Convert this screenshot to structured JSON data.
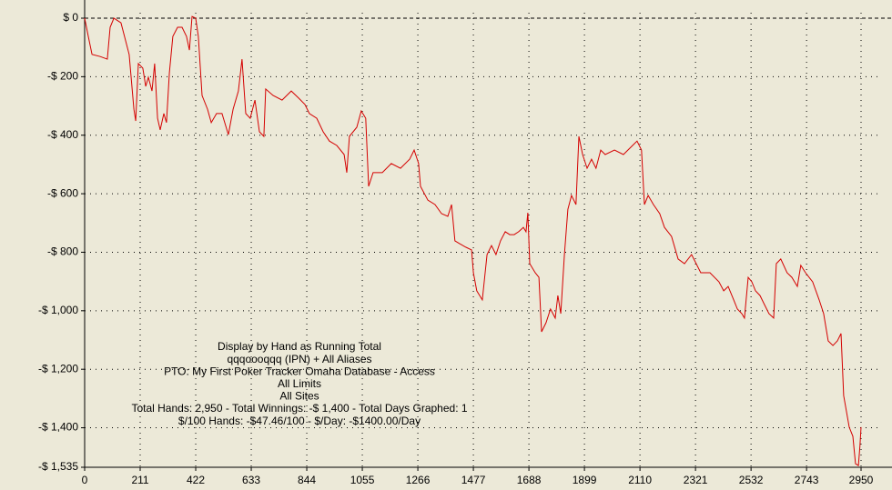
{
  "chart_data": {
    "type": "line",
    "annotations": [
      "Display by Hand as Running Total",
      "qqqoooqqq (IPN) + All Aliases",
      "PTO: My First Poker Tracker Omaha Database - Access",
      "All Limits",
      "All Sites",
      "Total Hands: 2,950 - Total Winnings: -$ 1,400 - Total Days Graphed: 1",
      "$/100 Hands: -$47.46/100 - $/Day: -$1400.00/Day"
    ],
    "xlim": [
      0,
      2950
    ],
    "ylim": [
      -1535,
      0
    ],
    "xticks": [
      0,
      211,
      422,
      633,
      844,
      1055,
      1266,
      1477,
      1688,
      1899,
      2110,
      2321,
      2532,
      2743,
      2950
    ],
    "yticks": [
      {
        "value": 0,
        "label": "$ 0"
      },
      {
        "value": -200,
        "label": "-$ 200"
      },
      {
        "value": -400,
        "label": "-$ 400"
      },
      {
        "value": -600,
        "label": "-$ 600"
      },
      {
        "value": -800,
        "label": "-$ 800"
      },
      {
        "value": -1000,
        "label": "-$ 1,000"
      },
      {
        "value": -1200,
        "label": "-$ 1,200"
      },
      {
        "value": -1400,
        "label": "-$ 1,400"
      },
      {
        "value": -1535,
        "label": "-$ 1,535"
      }
    ],
    "grid": true,
    "x": [
      0,
      14,
      28,
      59,
      86,
      97,
      111,
      138,
      156,
      169,
      187,
      194,
      204,
      221,
      232,
      242,
      256,
      266,
      277,
      287,
      301,
      311,
      322,
      335,
      353,
      370,
      387,
      398,
      408,
      422,
      432,
      446,
      467,
      481,
      501,
      522,
      546,
      564,
      584,
      598,
      612,
      629,
      647,
      664,
      681,
      688,
      716,
      750,
      785,
      813,
      837,
      854,
      882,
      906,
      930,
      958,
      986,
      996,
      1006,
      1034,
      1051,
      1068,
      1079,
      1096,
      1131,
      1165,
      1200,
      1235,
      1252,
      1269,
      1276,
      1304,
      1331,
      1356,
      1380,
      1394,
      1407,
      1425,
      1449,
      1470,
      1477,
      1490,
      1501,
      1511,
      1529,
      1546,
      1563,
      1580,
      1598,
      1615,
      1632,
      1649,
      1667,
      1677,
      1684,
      1691,
      1712,
      1726,
      1736,
      1753,
      1770,
      1788,
      1798,
      1809,
      1823,
      1836,
      1850,
      1867,
      1878,
      1892,
      1909,
      1926,
      1943,
      1961,
      1978,
      2013,
      2047,
      2082,
      2099,
      2116,
      2127,
      2141,
      2161,
      2185,
      2203,
      2230,
      2255,
      2279,
      2306,
      2341,
      2376,
      2410,
      2428,
      2445,
      2466,
      2480,
      2497,
      2507,
      2521,
      2535,
      2549,
      2566,
      2583,
      2600,
      2618,
      2628,
      2645,
      2669,
      2687,
      2708,
      2721,
      2739,
      2766,
      2791,
      2808,
      2825,
      2843,
      2860,
      2874,
      2884,
      2905,
      2919,
      2929,
      2940,
      2946,
      2950
    ],
    "series": [
      {
        "color": "#d40000",
        "values": [
          0,
          -62,
          -124,
          -131,
          -140,
          -31,
          0,
          -16,
          -78,
          -124,
          -311,
          -351,
          -155,
          -171,
          -233,
          -202,
          -249,
          -155,
          -342,
          -382,
          -326,
          -357,
          -186,
          -62,
          -31,
          -31,
          -62,
          -109,
          6,
          0,
          -62,
          -264,
          -311,
          -357,
          -326,
          -326,
          -398,
          -311,
          -249,
          -140,
          -326,
          -342,
          -280,
          -388,
          -404,
          -242,
          -264,
          -280,
          -249,
          -273,
          -295,
          -326,
          -342,
          -388,
          -420,
          -435,
          -466,
          -528,
          -404,
          -373,
          -317,
          -342,
          -575,
          -528,
          -528,
          -497,
          -513,
          -482,
          -451,
          -497,
          -575,
          -622,
          -637,
          -668,
          -677,
          -637,
          -761,
          -771,
          -783,
          -792,
          -870,
          -932,
          -948,
          -963,
          -808,
          -777,
          -808,
          -761,
          -730,
          -740,
          -740,
          -730,
          -715,
          -730,
          -665,
          -839,
          -870,
          -886,
          -1072,
          -1041,
          -994,
          -1025,
          -948,
          -1010,
          -808,
          -653,
          -606,
          -637,
          -404,
          -466,
          -513,
          -482,
          -513,
          -451,
          -466,
          -451,
          -466,
          -435,
          -420,
          -451,
          -637,
          -606,
          -637,
          -668,
          -715,
          -746,
          -823,
          -839,
          -808,
          -870,
          -870,
          -901,
          -932,
          -917,
          -963,
          -994,
          -1010,
          -1025,
          -886,
          -901,
          -932,
          -948,
          -979,
          -1010,
          -1025,
          -839,
          -823,
          -870,
          -886,
          -917,
          -845,
          -870,
          -901,
          -963,
          -1010,
          -1103,
          -1119,
          -1103,
          -1078,
          -1290,
          -1398,
          -1429,
          -1523,
          -1529,
          -1461,
          -1398
        ]
      }
    ]
  }
}
